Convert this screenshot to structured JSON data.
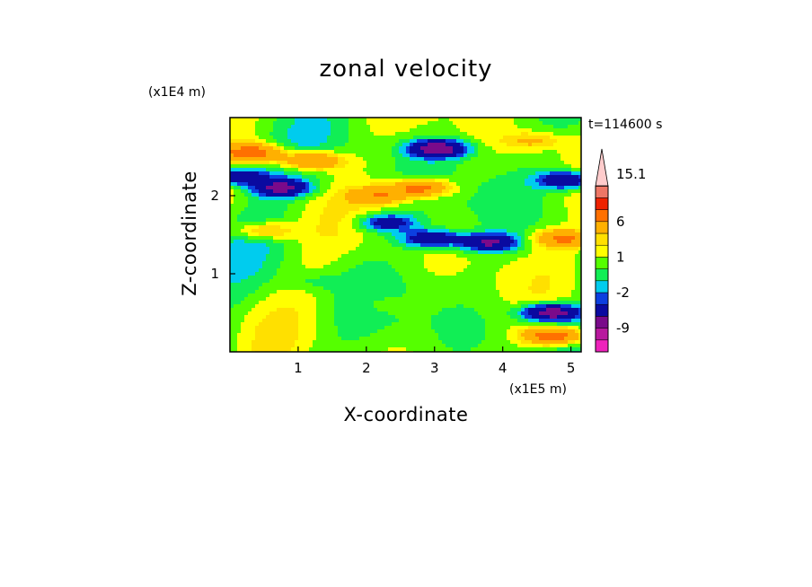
{
  "chart_data": {
    "type": "heatmap",
    "title": "zonal velocity",
    "xlabel": "X-coordinate",
    "ylabel": "Z-coordinate",
    "x_multiplier": "(x1E5 m)",
    "y_multiplier": "(x1E4 m)",
    "time_label": "t=114600 s",
    "xlim": [
      0,
      5.15
    ],
    "ylim": [
      0,
      3.0
    ],
    "x_ticks": [
      "1",
      "2",
      "3",
      "4",
      "5"
    ],
    "x_tick_values": [
      1,
      2,
      3,
      4,
      5
    ],
    "y_ticks": [
      "1",
      "2"
    ],
    "y_tick_values": [
      1,
      2
    ],
    "colorbar": {
      "levels": [
        -15,
        -12,
        -9,
        -6,
        -3,
        -2,
        -1,
        0,
        1,
        2,
        3,
        6,
        9,
        12,
        15.1
      ],
      "colors": [
        "#ee22bb",
        "#b8189e",
        "#7a0a8a",
        "#0a0aa0",
        "#0c3fe0",
        "#00ccee",
        "#11ee55",
        "#55ff00",
        "#ffff00",
        "#ffe000",
        "#ffb000",
        "#ff7000",
        "#ee2200",
        "#ee7766",
        "#ffcccc"
      ],
      "labels": [
        "15.1",
        "6",
        "1",
        "-2",
        "-9"
      ],
      "label_values": [
        15.1,
        6,
        1,
        -2,
        -9
      ],
      "extend": "max"
    },
    "features": [
      {
        "x": 0.35,
        "z": 2.55,
        "value": 7
      },
      {
        "x": 1.2,
        "z": 2.45,
        "value": 7
      },
      {
        "x": 0.75,
        "z": 2.1,
        "value": -7
      },
      {
        "x": 0.1,
        "z": 2.25,
        "value": -7
      },
      {
        "x": 3.05,
        "z": 2.6,
        "value": -9
      },
      {
        "x": 2.8,
        "z": 2.1,
        "value": 7
      },
      {
        "x": 2.2,
        "z": 2.0,
        "value": 5
      },
      {
        "x": 4.95,
        "z": 2.2,
        "value": -7
      },
      {
        "x": 3.8,
        "z": 1.4,
        "value": -7
      },
      {
        "x": 2.95,
        "z": 1.45,
        "value": -6
      },
      {
        "x": 2.3,
        "z": 1.65,
        "value": -5
      },
      {
        "x": 4.7,
        "z": 0.5,
        "value": -9
      },
      {
        "x": 4.75,
        "z": 0.2,
        "value": 8
      },
      {
        "x": 0.5,
        "z": 1.55,
        "value": 4
      },
      {
        "x": 4.9,
        "z": 1.45,
        "value": 6
      },
      {
        "x": 4.45,
        "z": 2.7,
        "value": 3
      },
      {
        "x": 2.3,
        "z": 0.6,
        "value": 1.2
      },
      {
        "x": 1.2,
        "z": 0.9,
        "value": -1.2
      }
    ]
  }
}
